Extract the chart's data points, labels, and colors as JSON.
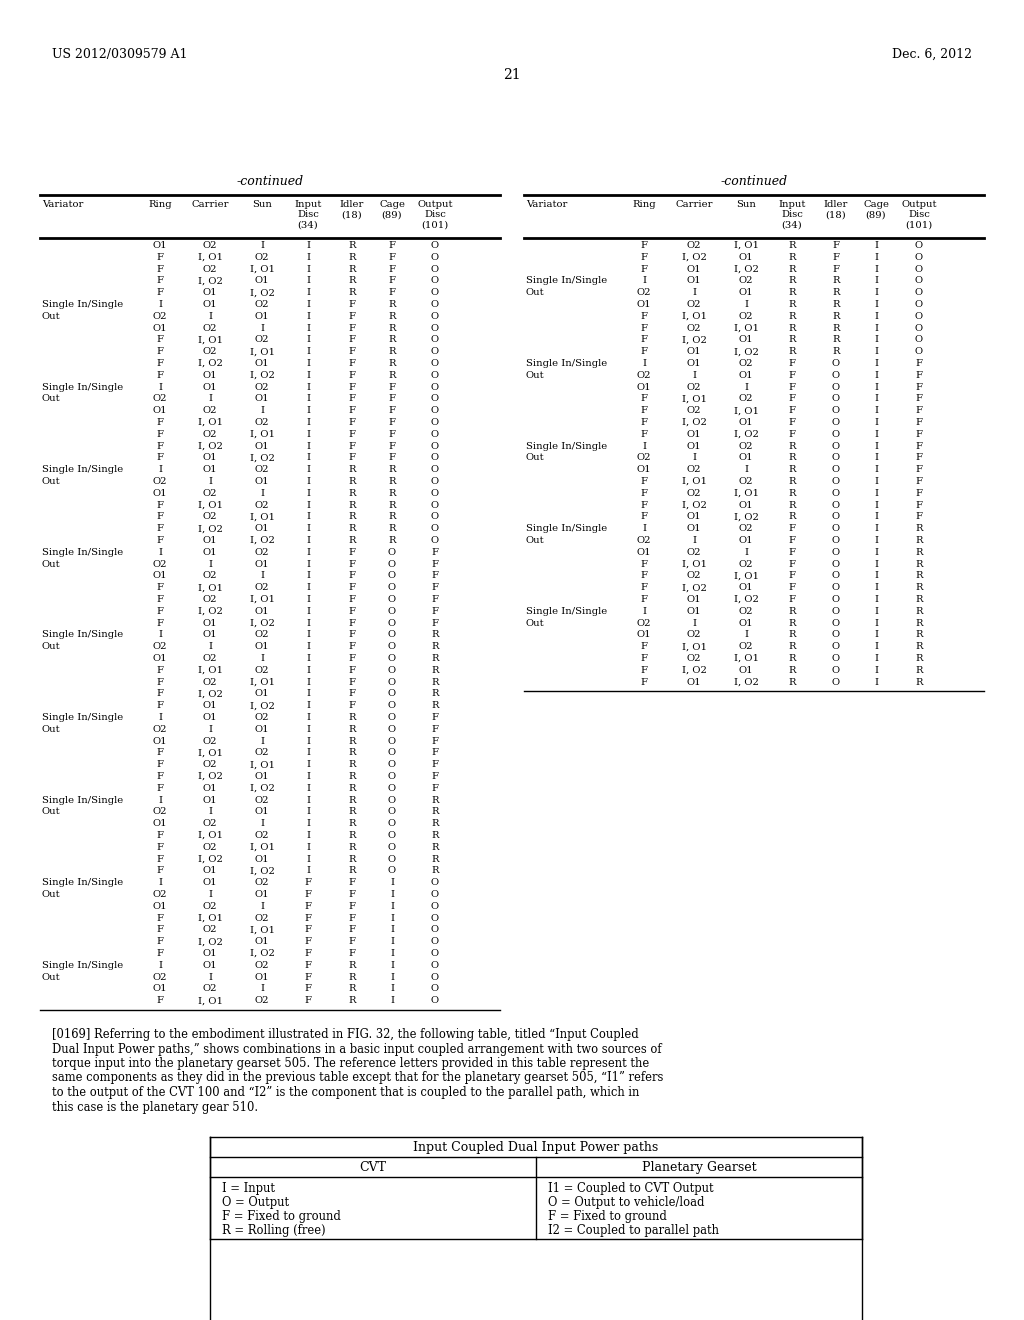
{
  "page_header_left": "US 2012/0309579 A1",
  "page_header_right": "Dec. 6, 2012",
  "page_number": "21",
  "left_table_title": "-continued",
  "right_table_title": "-continued",
  "left_rows": [
    [
      "",
      "O1",
      "O2",
      "I",
      "I",
      "R",
      "F",
      "O"
    ],
    [
      "",
      "F",
      "I, O1",
      "O2",
      "I",
      "R",
      "F",
      "O"
    ],
    [
      "",
      "F",
      "O2",
      "I, O1",
      "I",
      "R",
      "F",
      "O"
    ],
    [
      "",
      "F",
      "I, O2",
      "O1",
      "I",
      "R",
      "F",
      "O"
    ],
    [
      "",
      "F",
      "O1",
      "I, O2",
      "I",
      "R",
      "F",
      "O"
    ],
    [
      "Single In/Single",
      "I",
      "O1",
      "O2",
      "I",
      "F",
      "R",
      "O"
    ],
    [
      "Out",
      "O2",
      "I",
      "O1",
      "I",
      "F",
      "R",
      "O"
    ],
    [
      "",
      "O1",
      "O2",
      "I",
      "I",
      "F",
      "R",
      "O"
    ],
    [
      "",
      "F",
      "I, O1",
      "O2",
      "I",
      "F",
      "R",
      "O"
    ],
    [
      "",
      "F",
      "O2",
      "I, O1",
      "I",
      "F",
      "R",
      "O"
    ],
    [
      "",
      "F",
      "I, O2",
      "O1",
      "I",
      "F",
      "R",
      "O"
    ],
    [
      "",
      "F",
      "O1",
      "I, O2",
      "I",
      "F",
      "R",
      "O"
    ],
    [
      "Single In/Single",
      "I",
      "O1",
      "O2",
      "I",
      "F",
      "F",
      "O"
    ],
    [
      "Out",
      "O2",
      "I",
      "O1",
      "I",
      "F",
      "F",
      "O"
    ],
    [
      "",
      "O1",
      "O2",
      "I",
      "I",
      "F",
      "F",
      "O"
    ],
    [
      "",
      "F",
      "I, O1",
      "O2",
      "I",
      "F",
      "F",
      "O"
    ],
    [
      "",
      "F",
      "O2",
      "I, O1",
      "I",
      "F",
      "F",
      "O"
    ],
    [
      "",
      "F",
      "I, O2",
      "O1",
      "I",
      "F",
      "F",
      "O"
    ],
    [
      "",
      "F",
      "O1",
      "I, O2",
      "I",
      "F",
      "F",
      "O"
    ],
    [
      "Single In/Single",
      "I",
      "O1",
      "O2",
      "I",
      "R",
      "R",
      "O"
    ],
    [
      "Out",
      "O2",
      "I",
      "O1",
      "I",
      "R",
      "R",
      "O"
    ],
    [
      "",
      "O1",
      "O2",
      "I",
      "I",
      "R",
      "R",
      "O"
    ],
    [
      "",
      "F",
      "I, O1",
      "O2",
      "I",
      "R",
      "R",
      "O"
    ],
    [
      "",
      "F",
      "O2",
      "I, O1",
      "I",
      "R",
      "R",
      "O"
    ],
    [
      "",
      "F",
      "I, O2",
      "O1",
      "I",
      "R",
      "R",
      "O"
    ],
    [
      "",
      "F",
      "O1",
      "I, O2",
      "I",
      "R",
      "R",
      "O"
    ],
    [
      "Single In/Single",
      "I",
      "O1",
      "O2",
      "I",
      "F",
      "O",
      "F"
    ],
    [
      "Out",
      "O2",
      "I",
      "O1",
      "I",
      "F",
      "O",
      "F"
    ],
    [
      "",
      "O1",
      "O2",
      "I",
      "I",
      "F",
      "O",
      "F"
    ],
    [
      "",
      "F",
      "I, O1",
      "O2",
      "I",
      "F",
      "O",
      "F"
    ],
    [
      "",
      "F",
      "O2",
      "I, O1",
      "I",
      "F",
      "O",
      "F"
    ],
    [
      "",
      "F",
      "I, O2",
      "O1",
      "I",
      "F",
      "O",
      "F"
    ],
    [
      "",
      "F",
      "O1",
      "I, O2",
      "I",
      "F",
      "O",
      "F"
    ],
    [
      "Single In/Single",
      "I",
      "O1",
      "O2",
      "I",
      "F",
      "O",
      "R"
    ],
    [
      "Out",
      "O2",
      "I",
      "O1",
      "I",
      "F",
      "O",
      "R"
    ],
    [
      "",
      "O1",
      "O2",
      "I",
      "I",
      "F",
      "O",
      "R"
    ],
    [
      "",
      "F",
      "I, O1",
      "O2",
      "I",
      "F",
      "O",
      "R"
    ],
    [
      "",
      "F",
      "O2",
      "I, O1",
      "I",
      "F",
      "O",
      "R"
    ],
    [
      "",
      "F",
      "I, O2",
      "O1",
      "I",
      "F",
      "O",
      "R"
    ],
    [
      "",
      "F",
      "O1",
      "I, O2",
      "I",
      "F",
      "O",
      "R"
    ],
    [
      "Single In/Single",
      "I",
      "O1",
      "O2",
      "I",
      "R",
      "O",
      "F"
    ],
    [
      "Out",
      "O2",
      "I",
      "O1",
      "I",
      "R",
      "O",
      "F"
    ],
    [
      "",
      "O1",
      "O2",
      "I",
      "I",
      "R",
      "O",
      "F"
    ],
    [
      "",
      "F",
      "I, O1",
      "O2",
      "I",
      "R",
      "O",
      "F"
    ],
    [
      "",
      "F",
      "O2",
      "I, O1",
      "I",
      "R",
      "O",
      "F"
    ],
    [
      "",
      "F",
      "I, O2",
      "O1",
      "I",
      "R",
      "O",
      "F"
    ],
    [
      "",
      "F",
      "O1",
      "I, O2",
      "I",
      "R",
      "O",
      "F"
    ],
    [
      "Single In/Single",
      "I",
      "O1",
      "O2",
      "I",
      "R",
      "O",
      "R"
    ],
    [
      "Out",
      "O2",
      "I",
      "O1",
      "I",
      "R",
      "O",
      "R"
    ],
    [
      "",
      "O1",
      "O2",
      "I",
      "I",
      "R",
      "O",
      "R"
    ],
    [
      "",
      "F",
      "I, O1",
      "O2",
      "I",
      "R",
      "O",
      "R"
    ],
    [
      "",
      "F",
      "O2",
      "I, O1",
      "I",
      "R",
      "O",
      "R"
    ],
    [
      "",
      "F",
      "I, O2",
      "O1",
      "I",
      "R",
      "O",
      "R"
    ],
    [
      "",
      "F",
      "O1",
      "I, O2",
      "I",
      "R",
      "O",
      "R"
    ],
    [
      "Single In/Single",
      "I",
      "O1",
      "O2",
      "F",
      "F",
      "I",
      "O"
    ],
    [
      "Out",
      "O2",
      "I",
      "O1",
      "F",
      "F",
      "I",
      "O"
    ],
    [
      "",
      "O1",
      "O2",
      "I",
      "F",
      "F",
      "I",
      "O"
    ],
    [
      "",
      "F",
      "I, O1",
      "O2",
      "F",
      "F",
      "I",
      "O"
    ],
    [
      "",
      "F",
      "O2",
      "I, O1",
      "F",
      "F",
      "I",
      "O"
    ],
    [
      "",
      "F",
      "I, O2",
      "O1",
      "F",
      "F",
      "I",
      "O"
    ],
    [
      "",
      "F",
      "O1",
      "I, O2",
      "F",
      "F",
      "I",
      "O"
    ],
    [
      "Single In/Single",
      "I",
      "O1",
      "O2",
      "F",
      "R",
      "I",
      "O"
    ],
    [
      "Out",
      "O2",
      "I",
      "O1",
      "F",
      "R",
      "I",
      "O"
    ],
    [
      "",
      "O1",
      "O2",
      "I",
      "F",
      "R",
      "I",
      "O"
    ],
    [
      "",
      "F",
      "I, O1",
      "O2",
      "F",
      "R",
      "I",
      "O"
    ]
  ],
  "right_rows": [
    [
      "",
      "F",
      "O2",
      "I, O1",
      "R",
      "F",
      "I",
      "O"
    ],
    [
      "",
      "F",
      "I, O2",
      "O1",
      "R",
      "F",
      "I",
      "O"
    ],
    [
      "",
      "F",
      "O1",
      "I, O2",
      "R",
      "F",
      "I",
      "O"
    ],
    [
      "Single In/Single",
      "I",
      "O1",
      "O2",
      "R",
      "R",
      "I",
      "O"
    ],
    [
      "Out",
      "O2",
      "I",
      "O1",
      "R",
      "R",
      "I",
      "O"
    ],
    [
      "",
      "O1",
      "O2",
      "I",
      "R",
      "R",
      "I",
      "O"
    ],
    [
      "",
      "F",
      "I, O1",
      "O2",
      "R",
      "R",
      "I",
      "O"
    ],
    [
      "",
      "F",
      "O2",
      "I, O1",
      "R",
      "R",
      "I",
      "O"
    ],
    [
      "",
      "F",
      "I, O2",
      "O1",
      "R",
      "R",
      "I",
      "O"
    ],
    [
      "",
      "F",
      "O1",
      "I, O2",
      "R",
      "R",
      "I",
      "O"
    ],
    [
      "Single In/Single",
      "I",
      "O1",
      "O2",
      "F",
      "O",
      "I",
      "F"
    ],
    [
      "Out",
      "O2",
      "I",
      "O1",
      "F",
      "O",
      "I",
      "F"
    ],
    [
      "",
      "O1",
      "O2",
      "I",
      "F",
      "O",
      "I",
      "F"
    ],
    [
      "",
      "F",
      "I, O1",
      "O2",
      "F",
      "O",
      "I",
      "F"
    ],
    [
      "",
      "F",
      "O2",
      "I, O1",
      "F",
      "O",
      "I",
      "F"
    ],
    [
      "",
      "F",
      "I, O2",
      "O1",
      "F",
      "O",
      "I",
      "F"
    ],
    [
      "",
      "F",
      "O1",
      "I, O2",
      "F",
      "O",
      "I",
      "F"
    ],
    [
      "Single In/Single",
      "I",
      "O1",
      "O2",
      "R",
      "O",
      "I",
      "F"
    ],
    [
      "Out",
      "O2",
      "I",
      "O1",
      "R",
      "O",
      "I",
      "F"
    ],
    [
      "",
      "O1",
      "O2",
      "I",
      "R",
      "O",
      "I",
      "F"
    ],
    [
      "",
      "F",
      "I, O1",
      "O2",
      "R",
      "O",
      "I",
      "F"
    ],
    [
      "",
      "F",
      "O2",
      "I, O1",
      "R",
      "O",
      "I",
      "F"
    ],
    [
      "",
      "F",
      "I, O2",
      "O1",
      "R",
      "O",
      "I",
      "F"
    ],
    [
      "",
      "F",
      "O1",
      "I, O2",
      "R",
      "O",
      "I",
      "F"
    ],
    [
      "Single In/Single",
      "I",
      "O1",
      "O2",
      "F",
      "O",
      "I",
      "R"
    ],
    [
      "Out",
      "O2",
      "I",
      "O1",
      "F",
      "O",
      "I",
      "R"
    ],
    [
      "",
      "O1",
      "O2",
      "I",
      "F",
      "O",
      "I",
      "R"
    ],
    [
      "",
      "F",
      "I, O1",
      "O2",
      "F",
      "O",
      "I",
      "R"
    ],
    [
      "",
      "F",
      "O2",
      "I, O1",
      "F",
      "O",
      "I",
      "R"
    ],
    [
      "",
      "F",
      "I, O2",
      "O1",
      "F",
      "O",
      "I",
      "R"
    ],
    [
      "",
      "F",
      "O1",
      "I, O2",
      "F",
      "O",
      "I",
      "R"
    ],
    [
      "Single In/Single",
      "I",
      "O1",
      "O2",
      "R",
      "O",
      "I",
      "R"
    ],
    [
      "Out",
      "O2",
      "I",
      "O1",
      "R",
      "O",
      "I",
      "R"
    ],
    [
      "",
      "O1",
      "O2",
      "I",
      "R",
      "O",
      "I",
      "R"
    ],
    [
      "",
      "F",
      "I, O1",
      "O2",
      "R",
      "O",
      "I",
      "R"
    ],
    [
      "",
      "F",
      "O2",
      "I, O1",
      "R",
      "O",
      "I",
      "R"
    ],
    [
      "",
      "F",
      "I, O2",
      "O1",
      "R",
      "O",
      "I",
      "R"
    ],
    [
      "",
      "F",
      "O1",
      "I, O2",
      "R",
      "O",
      "I",
      "R"
    ]
  ],
  "paragraph_text": "[0169]   Referring to the embodiment illustrated in FIG. 32, the following table, titled “Input Coupled Dual Input Power paths,” shows combinations in a basic input coupled arrangement with two sources of torque input into the planetary gearset 505. The reference letters provided in this table represent the same components as they did in the previous table except that for the planetary gearset 505, “I1” refers to the output of the CVT 100 and “I2” is the component that is coupled to the parallel path, which in this case is the planetary gear 510.",
  "bottom_table_title": "Input Coupled Dual Input Power paths",
  "bottom_table_left_header": "CVT",
  "bottom_table_right_header": "Planetary Gearset",
  "bottom_table_rows": [
    [
      "I = Input",
      "I1 = Coupled to CVT Output"
    ],
    [
      "O = Output",
      "O = Output to vehicle/load"
    ],
    [
      "F = Fixed to ground",
      "F = Fixed to ground"
    ],
    [
      "R = Rolling (free)",
      "I2 = Coupled to parallel path"
    ]
  ]
}
